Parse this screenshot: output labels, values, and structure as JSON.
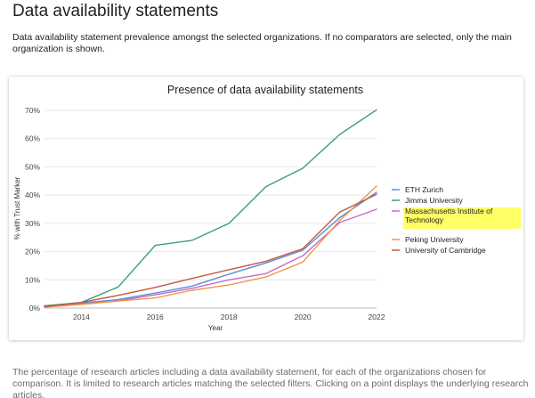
{
  "page": {
    "title": "Data availability statements",
    "description": "Data availability statement prevalence amongst the selected organizations. If no comparators are selected, only the main organization is shown.",
    "footer": "The percentage of research articles including a data availability statement, for each of the organizations chosen for comparison. It is limited to research articles matching the selected filters. Clicking on a point displays the underlying research articles."
  },
  "colors": {
    "highlight": "#ffff66",
    "grid": "#e6e6e6"
  },
  "chart_data": {
    "type": "line",
    "title": "Presence of data availability statements",
    "xlabel": "Year",
    "ylabel": "% with Trust Marker",
    "x": [
      2013,
      2014,
      2015,
      2016,
      2017,
      2018,
      2019,
      2020,
      2021,
      2022
    ],
    "xticks": [
      2014,
      2016,
      2018,
      2020,
      2022
    ],
    "yticks": [
      0,
      10,
      20,
      30,
      40,
      50,
      60,
      70
    ],
    "yticks_labels": [
      "0%",
      "10%",
      "20%",
      "30%",
      "40%",
      "50%",
      "60%",
      "70%"
    ],
    "xlim": [
      2013,
      2022
    ],
    "ylim": [
      0,
      70
    ],
    "grid": "horizontal",
    "legend": "right",
    "series": [
      {
        "name": "ETH Zurich",
        "color": "#5b8fd6",
        "values": [
          0.8,
          1.8,
          3.0,
          5.3,
          7.8,
          12.0,
          16.0,
          20.5,
          32.0,
          41.0
        ]
      },
      {
        "name": "Jimma University",
        "color": "#3f9e75",
        "values": [
          0.8,
          2.0,
          7.5,
          22.2,
          24.0,
          30.0,
          43.0,
          49.5,
          61.5,
          70.2
        ]
      },
      {
        "name": "Massachusetts Institute of Technology",
        "name_lines": [
          "Massachusetts Institute of",
          "Technology"
        ],
        "highlighted": true,
        "color": "#c66ac9",
        "values": [
          0.5,
          1.4,
          2.6,
          4.7,
          7.0,
          10.0,
          12.2,
          18.5,
          30.3,
          35.0
        ]
      },
      {
        "name": "Peking University",
        "color": "#f0964a",
        "values": [
          0.3,
          1.3,
          2.5,
          3.6,
          6.3,
          8.2,
          11.0,
          16.3,
          31.0,
          43.2
        ]
      },
      {
        "name": "University of Cambridge",
        "color": "#c4583f",
        "values": [
          0.5,
          2.0,
          4.5,
          7.3,
          10.5,
          13.6,
          16.6,
          21.0,
          34.0,
          40.3
        ]
      }
    ]
  }
}
